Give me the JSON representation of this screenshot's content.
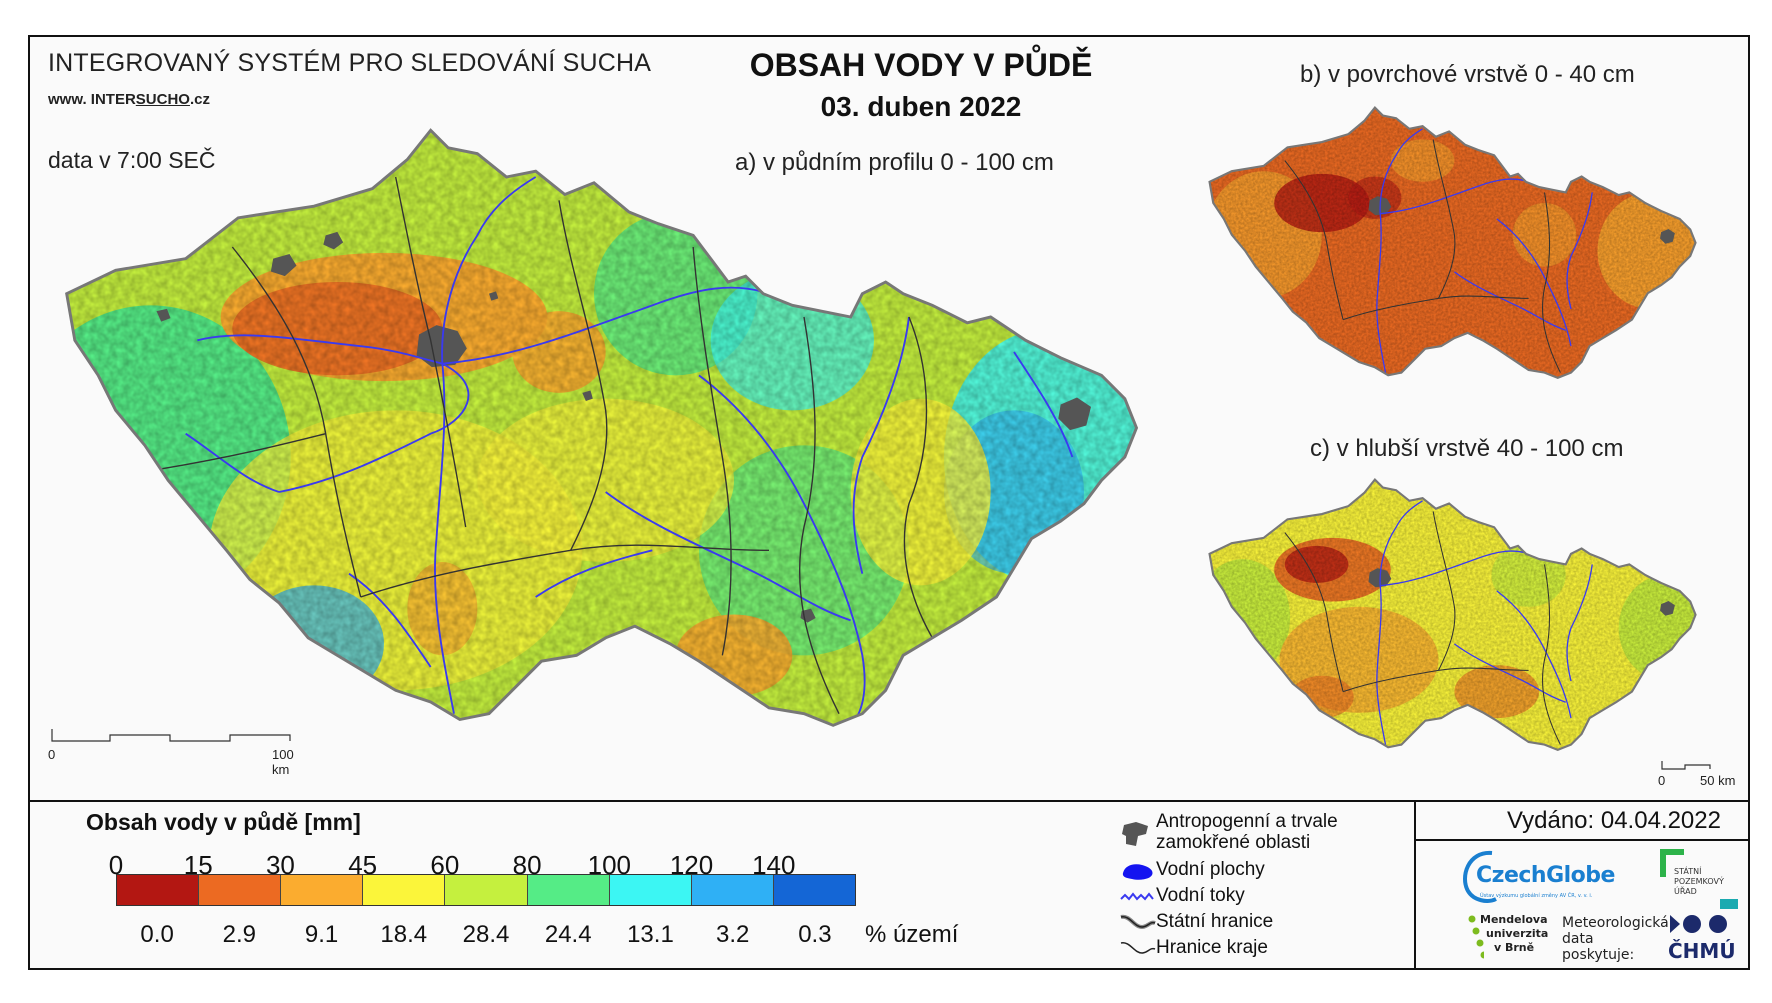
{
  "header": {
    "system_title": "INTEGROVANÝ SYSTÉM PRO SLEDOVÁNÍ SUCHA",
    "website_prefix": "www. INTER",
    "website_underlined": "SUCHO",
    "website_suffix": ".cz",
    "data_time": "data v 7:00 SEČ",
    "title": "OBSAH VODY V PŮDĚ",
    "date": "03. duben 2022"
  },
  "maps": {
    "a_label": "a) v půdním profilu 0 - 100 cm",
    "b_label": "b) v povrchové vrstvě 0 - 40 cm",
    "c_label": "c) v hlubší vrstvě 40 - 100 cm",
    "main_scale": {
      "start": "0",
      "end": "100 km"
    },
    "small_scale": {
      "start": "0",
      "end": "50 km"
    }
  },
  "legend": {
    "title": "Obsah vody v půdě  [mm]",
    "ticks": [
      "0",
      "15",
      "30",
      "45",
      "60",
      "80",
      "100",
      "120",
      "140"
    ],
    "classes": [
      {
        "color": "#b31712",
        "pct": "0.0"
      },
      {
        "color": "#ec6a22",
        "pct": "2.9"
      },
      {
        "color": "#fbac2f",
        "pct": "9.1"
      },
      {
        "color": "#fbf53a",
        "pct": "18.4"
      },
      {
        "color": "#c5f03e",
        "pct": "28.4"
      },
      {
        "color": "#55ec86",
        "pct": "24.4"
      },
      {
        "color": "#3cf6f3",
        "pct": "13.1"
      },
      {
        "color": "#2fb0f5",
        "pct": "3.2"
      },
      {
        "color": "#1466d6",
        "pct": "0.3"
      }
    ],
    "pct_label": "% území"
  },
  "map_legend": {
    "anthropogenic": [
      "Antropogenní a trvale",
      "zamokřené oblasti"
    ],
    "water_bodies": "Vodní plochy",
    "rivers": "Vodní toky",
    "state_border": "Státní hranice",
    "region_border": "Hranice kraje"
  },
  "footer": {
    "issued": "Vydáno: 04.04.2022",
    "czechglobe": "CzechGlobe",
    "czechglobe_sub": "Ústav výzkumu globální změny AV ČR, v. v. i.",
    "spu": [
      "STÁTNÍ",
      "POZEMKOVÝ",
      "ÚŘAD"
    ],
    "mendelu": [
      "Mendelova",
      "univerzita",
      "v Brně"
    ],
    "meteo": [
      "Meteorologická",
      "data",
      "poskytuje:"
    ],
    "chmu": "ČHMÚ"
  },
  "colors": {
    "anthropogenic": "#555555",
    "rivers": "#3a3af0",
    "borders": "#333333",
    "czechglobe_blue": "#1a7fd0",
    "spu_green": "#2db34a",
    "spu_teal": "#1aaab0",
    "mendelu_green": "#7dbb1e",
    "chmu_navy": "#1c2a6b"
  }
}
